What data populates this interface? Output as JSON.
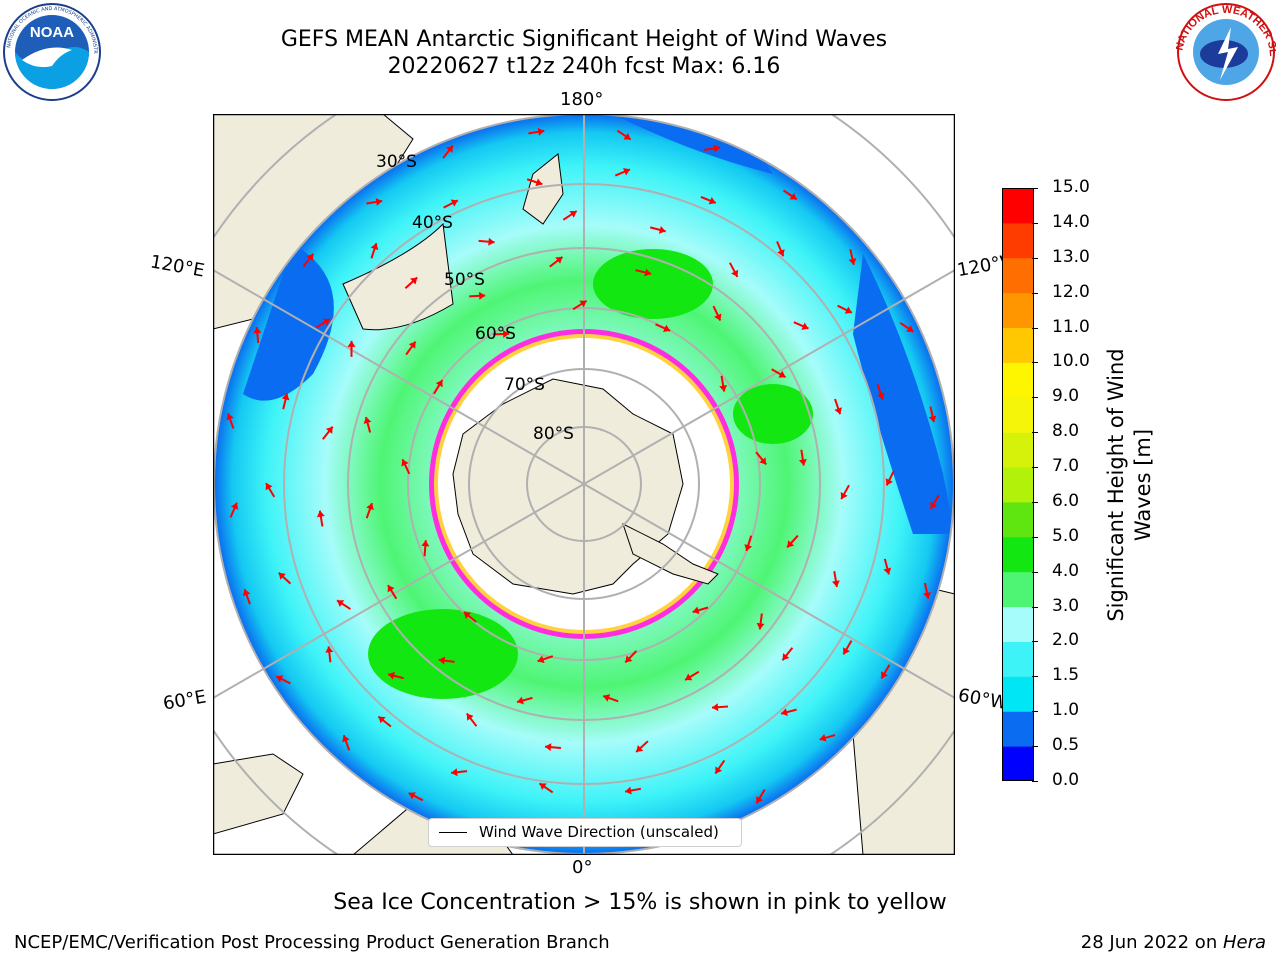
{
  "title": {
    "line1": "GEFS MEAN Antarctic Significant Height of Wind Waves",
    "line2": "20220627 t12z 240h fcst   Max: 6.16"
  },
  "map": {
    "longitude_labels": {
      "top": "180°",
      "bottom": "0°",
      "upper_left": "120°E",
      "upper_right": "120°W",
      "lower_left": "60°E",
      "lower_right": "60°W"
    },
    "latitude_labels": [
      "30°S",
      "40°S",
      "50°S",
      "60°S",
      "70°S",
      "80°S"
    ],
    "legend": "Wind Wave Direction (unscaled)"
  },
  "colorbar": {
    "label": "Significant Height of Wind Waves [m]",
    "ticks": [
      "0.0",
      "0.5",
      "1.0",
      "1.5",
      "2.0",
      "3.0",
      "4.0",
      "5.0",
      "6.0",
      "7.0",
      "8.0",
      "9.0",
      "10.0",
      "11.0",
      "12.0",
      "13.0",
      "14.0",
      "15.0"
    ],
    "colors": [
      "#0000ff",
      "#0a6cf0",
      "#00e6f5",
      "#3ef3f7",
      "#a6fcfa",
      "#4ef574",
      "#12e712",
      "#5fe510",
      "#b1f10a",
      "#d6f20b",
      "#f5f50a",
      "#fef500",
      "#ffc800",
      "#ff9600",
      "#ff6e00",
      "#ff3c00",
      "#ff0000"
    ]
  },
  "note": "Sea Ice Concentration > 15% is shown in pink to yellow",
  "footer": {
    "left": "NCEP/EMC/Verification Post Processing Product Generation Branch",
    "right_date": "28 Jun 2022 on ",
    "right_host": "Hera"
  },
  "logos": {
    "left": "NOAA",
    "right": "NATIONAL WEATHER SERVICE"
  },
  "style": {
    "ocean_low": "#14c8f2",
    "ocean_mid": "#a6fcfa",
    "land": "#efecdc",
    "ice": "#ffffff",
    "arrow": "#ff0000",
    "grid": "#b0b0b0"
  }
}
